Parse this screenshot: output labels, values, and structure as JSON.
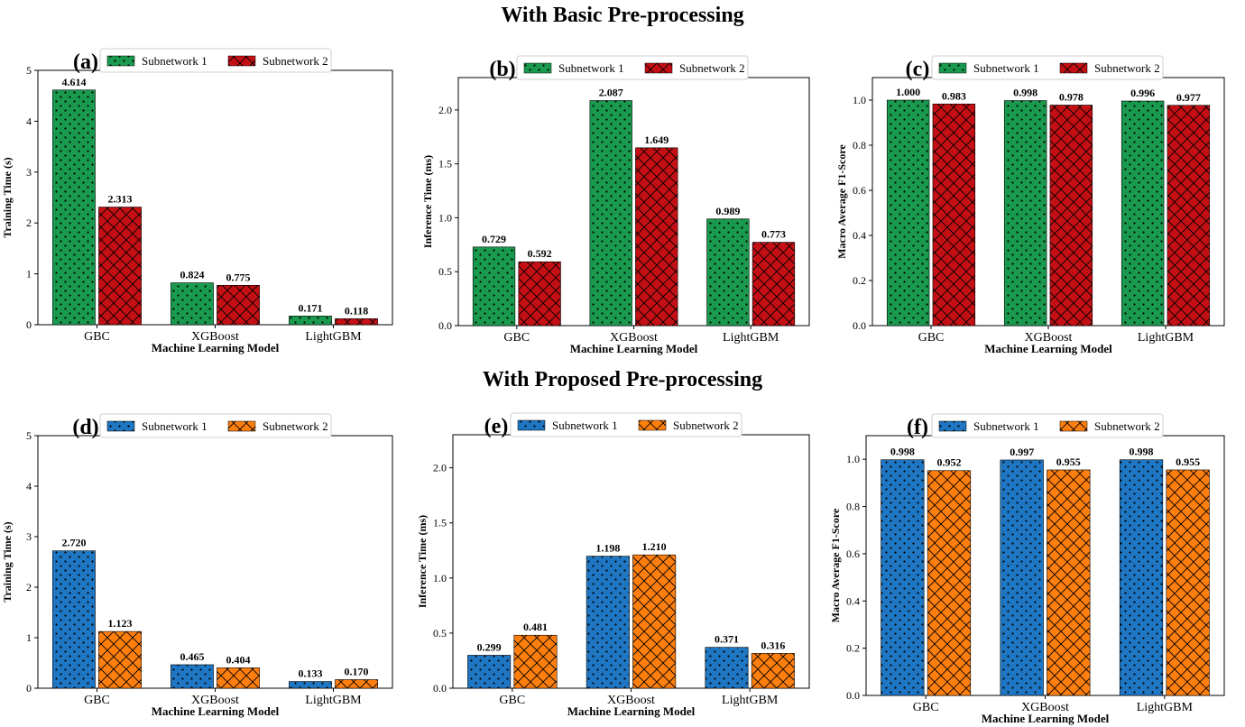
{
  "section_titles": {
    "top": "With Basic Pre-processing",
    "bottom": "With Proposed Pre-processing"
  },
  "colors": {
    "basic": {
      "s1": "#1a9a4e",
      "s2": "#c41015"
    },
    "proposed": {
      "s1": "#1f77c4",
      "s2": "#ff7f0e"
    }
  },
  "chart_data": [
    {
      "panel_label": "(a)",
      "type": "bar",
      "categories": [
        "GBC",
        "XGBoost",
        "LightGBM"
      ],
      "xlabel": "Machine Learning Model",
      "ylabel": "Training Time (s)",
      "ylim": [
        0,
        5
      ],
      "yticks": [
        "0",
        "1",
        "2",
        "3",
        "4",
        "5"
      ],
      "legend": "top-left",
      "series": [
        {
          "name": "Subnetwork 1",
          "values": [
            4.614,
            0.824,
            0.171
          ],
          "labels": [
            "4.614",
            "0.824",
            "0.171"
          ],
          "color": "#1a9a4e",
          "hatch": "dots"
        },
        {
          "name": "Subnetwork 2",
          "values": [
            2.313,
            0.775,
            0.118
          ],
          "labels": [
            "2.313",
            "0.775",
            "0.118"
          ],
          "color": "#c41015",
          "hatch": "cross"
        }
      ]
    },
    {
      "panel_label": "(b)",
      "type": "bar",
      "categories": [
        "GBC",
        "XGBoost",
        "LightGBM"
      ],
      "xlabel": "Machine Learning Model",
      "ylabel": "Inference Time (ms)",
      "ylim": [
        0,
        2.3
      ],
      "yticks": [
        "0.0",
        "0.5",
        "1.0",
        "1.5",
        "2.0"
      ],
      "legend": "top-left",
      "series": [
        {
          "name": "Subnetwork 1",
          "values": [
            0.729,
            2.087,
            0.989
          ],
          "labels": [
            "0.729",
            "2.087",
            "0.989"
          ],
          "color": "#1a9a4e",
          "hatch": "dots"
        },
        {
          "name": "Subnetwork 2",
          "values": [
            0.592,
            1.649,
            0.773
          ],
          "labels": [
            "0.592",
            "1.649",
            "0.773"
          ],
          "color": "#c41015",
          "hatch": "cross"
        }
      ]
    },
    {
      "panel_label": "(c)",
      "type": "bar",
      "categories": [
        "GBC",
        "XGBoost",
        "LightGBM"
      ],
      "xlabel": "Machine Learning Model",
      "ylabel": "Macro Average F1-Score",
      "ylim": [
        0,
        1.1
      ],
      "yticks": [
        "0.0",
        "0.2",
        "0.4",
        "0.6",
        "0.8",
        "1.0"
      ],
      "legend": "top-left",
      "series": [
        {
          "name": "Subnetwork 1",
          "values": [
            1.0,
            0.998,
            0.996
          ],
          "labels": [
            "1.000",
            "0.998",
            "0.996"
          ],
          "color": "#1a9a4e",
          "hatch": "dots"
        },
        {
          "name": "Subnetwork 2",
          "values": [
            0.983,
            0.978,
            0.977
          ],
          "labels": [
            "0.983",
            "0.978",
            "0.977"
          ],
          "color": "#c41015",
          "hatch": "cross"
        }
      ]
    },
    {
      "panel_label": "(d)",
      "type": "bar",
      "categories": [
        "GBC",
        "XGBoost",
        "LightGBM"
      ],
      "xlabel": "Machine Learning Model",
      "ylabel": "Training Time (s)",
      "ylim": [
        0,
        5
      ],
      "yticks": [
        "0",
        "1",
        "2",
        "3",
        "4",
        "5"
      ],
      "legend": "top-left",
      "series": [
        {
          "name": "Subnetwork 1",
          "values": [
            2.72,
            0.465,
            0.133
          ],
          "labels": [
            "2.720",
            "0.465",
            "0.133"
          ],
          "color": "#1f77c4",
          "hatch": "dots"
        },
        {
          "name": "Subnetwork 2",
          "values": [
            1.123,
            0.404,
            0.17
          ],
          "labels": [
            "1.123",
            "0.404",
            "0.170"
          ],
          "color": "#ff7f0e",
          "hatch": "cross"
        }
      ]
    },
    {
      "panel_label": "(e)",
      "type": "bar",
      "categories": [
        "GBC",
        "XGBoost",
        "LightGBM"
      ],
      "xlabel": "Machine Learning Model",
      "ylabel": "Inference Time (ms)",
      "ylim": [
        0,
        2.3
      ],
      "yticks": [
        "0.0",
        "0.5",
        "1.0",
        "1.5",
        "2.0"
      ],
      "legend": "top-left",
      "series": [
        {
          "name": "Subnetwork 1",
          "values": [
            0.299,
            1.198,
            0.371
          ],
          "labels": [
            "0.299",
            "1.198",
            "0.371"
          ],
          "color": "#1f77c4",
          "hatch": "dots"
        },
        {
          "name": "Subnetwork 2",
          "values": [
            0.481,
            1.21,
            0.316
          ],
          "labels": [
            "0.481",
            "1.210",
            "0.316"
          ],
          "color": "#ff7f0e",
          "hatch": "cross"
        }
      ]
    },
    {
      "panel_label": "(f)",
      "type": "bar",
      "categories": [
        "GBC",
        "XGBoost",
        "LightGBM"
      ],
      "xlabel": "Machine Learning Model",
      "ylabel": "Macro Average F1-Score",
      "ylim": [
        0,
        1.1
      ],
      "yticks": [
        "0.0",
        "0.2",
        "0.4",
        "0.6",
        "0.8",
        "1.0"
      ],
      "legend": "top-left",
      "series": [
        {
          "name": "Subnetwork 1",
          "values": [
            0.998,
            0.997,
            0.998
          ],
          "labels": [
            "0.998",
            "0.997",
            "0.998"
          ],
          "color": "#1f77c4",
          "hatch": "dots"
        },
        {
          "name": "Subnetwork 2",
          "values": [
            0.952,
            0.955,
            0.955
          ],
          "labels": [
            "0.952",
            "0.955",
            "0.955"
          ],
          "color": "#ff7f0e",
          "hatch": "cross"
        }
      ]
    }
  ]
}
